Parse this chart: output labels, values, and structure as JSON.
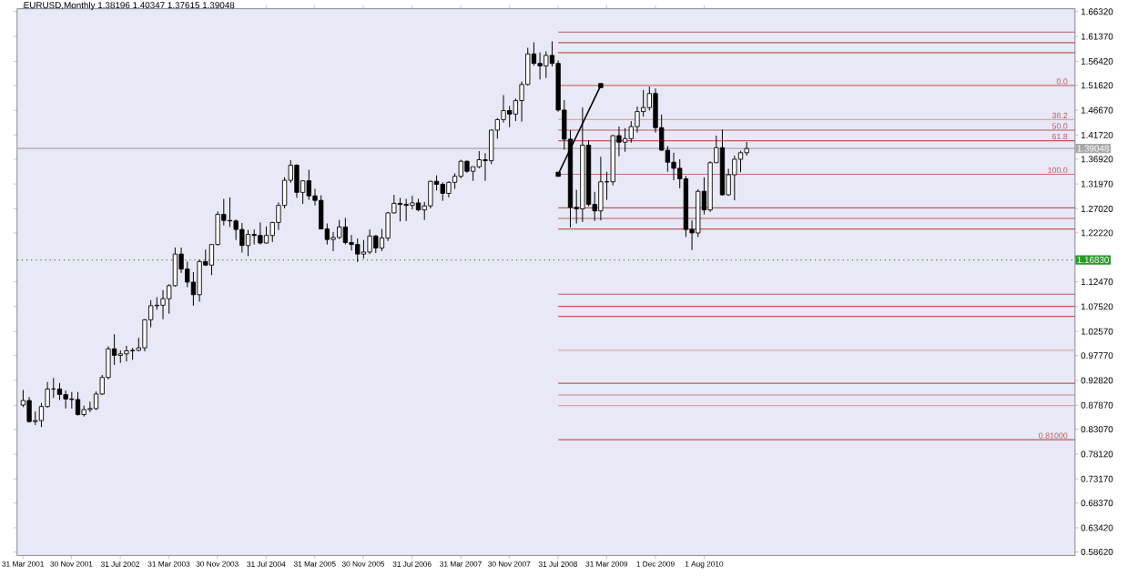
{
  "chart_data": {
    "type": "candlestick",
    "title": "EURUSD,Monthly  1.38196 1.40347 1.37615 1.39048",
    "x": [
      "2001-04",
      "2001-05",
      "2001-06",
      "2001-07",
      "2001-08",
      "2001-09",
      "2001-10",
      "2001-11",
      "2001-12",
      "2002-01",
      "2002-02",
      "2002-03",
      "2002-04",
      "2002-05",
      "2002-06",
      "2002-07",
      "2002-08",
      "2002-09",
      "2002-10",
      "2002-11",
      "2002-12",
      "2003-01",
      "2003-02",
      "2003-03",
      "2003-04",
      "2003-05",
      "2003-06",
      "2003-07",
      "2003-08",
      "2003-09",
      "2003-10",
      "2003-11",
      "2003-12",
      "2004-01",
      "2004-02",
      "2004-03",
      "2004-04",
      "2004-05",
      "2004-06",
      "2004-07",
      "2004-08",
      "2004-09",
      "2004-10",
      "2004-11",
      "2004-12",
      "2005-01",
      "2005-02",
      "2005-03",
      "2005-04",
      "2005-05",
      "2005-06",
      "2005-07",
      "2005-08",
      "2005-09",
      "2005-10",
      "2005-11",
      "2005-12",
      "2006-01",
      "2006-02",
      "2006-03",
      "2006-04",
      "2006-05",
      "2006-06",
      "2006-07",
      "2006-08",
      "2006-09",
      "2006-10",
      "2006-11",
      "2006-12",
      "2007-01",
      "2007-02",
      "2007-03",
      "2007-04",
      "2007-05",
      "2007-06",
      "2007-07",
      "2007-08",
      "2007-09",
      "2007-10",
      "2007-11",
      "2007-12",
      "2008-01",
      "2008-02",
      "2008-03",
      "2008-04",
      "2008-05",
      "2008-06",
      "2008-07",
      "2008-08",
      "2008-09",
      "2008-10",
      "2008-11",
      "2008-12",
      "2009-01",
      "2009-02",
      "2009-03",
      "2009-04",
      "2009-05",
      "2009-06",
      "2009-07",
      "2009-08",
      "2009-09",
      "2009-10",
      "2009-11",
      "2009-12",
      "2010-01",
      "2010-02",
      "2010-03",
      "2010-04",
      "2010-05",
      "2010-06",
      "2010-07",
      "2010-08",
      "2010-09",
      "2010-10",
      "2010-11",
      "2010-12",
      "2011-01",
      "2011-02",
      "2011-03"
    ],
    "ohlc": [
      [
        0.879,
        0.909,
        0.875,
        0.888
      ],
      [
        0.888,
        0.895,
        0.844,
        0.846
      ],
      [
        0.846,
        0.866,
        0.839,
        0.848
      ],
      [
        0.848,
        0.883,
        0.835,
        0.876
      ],
      [
        0.876,
        0.925,
        0.874,
        0.911
      ],
      [
        0.911,
        0.933,
        0.893,
        0.911
      ],
      [
        0.911,
        0.923,
        0.889,
        0.9
      ],
      [
        0.9,
        0.908,
        0.872,
        0.891
      ],
      [
        0.891,
        0.905,
        0.872,
        0.89
      ],
      [
        0.89,
        0.905,
        0.858,
        0.86
      ],
      [
        0.86,
        0.878,
        0.856,
        0.87
      ],
      [
        0.87,
        0.886,
        0.865,
        0.872
      ],
      [
        0.872,
        0.906,
        0.869,
        0.901
      ],
      [
        0.901,
        0.939,
        0.899,
        0.934
      ],
      [
        0.934,
        0.996,
        0.93,
        0.991
      ],
      [
        0.991,
        1.02,
        0.959,
        0.978
      ],
      [
        0.978,
        0.988,
        0.963,
        0.981
      ],
      [
        0.981,
        0.997,
        0.966,
        0.987
      ],
      [
        0.987,
        0.993,
        0.969,
        0.988
      ],
      [
        0.988,
        1.013,
        0.986,
        0.993
      ],
      [
        0.993,
        1.05,
        0.986,
        1.049
      ],
      [
        1.049,
        1.088,
        1.034,
        1.077
      ],
      [
        1.077,
        1.094,
        1.069,
        1.078
      ],
      [
        1.078,
        1.108,
        1.05,
        1.091
      ],
      [
        1.091,
        1.12,
        1.061,
        1.117
      ],
      [
        1.117,
        1.193,
        1.115,
        1.18
      ],
      [
        1.18,
        1.193,
        1.142,
        1.15
      ],
      [
        1.15,
        1.165,
        1.114,
        1.124
      ],
      [
        1.124,
        1.144,
        1.077,
        1.099
      ],
      [
        1.099,
        1.169,
        1.085,
        1.165
      ],
      [
        1.165,
        1.189,
        1.156,
        1.158
      ],
      [
        1.158,
        1.2,
        1.138,
        1.199
      ],
      [
        1.199,
        1.265,
        1.197,
        1.259
      ],
      [
        1.259,
        1.29,
        1.237,
        1.247
      ],
      [
        1.247,
        1.293,
        1.234,
        1.246
      ],
      [
        1.246,
        1.249,
        1.208,
        1.229
      ],
      [
        1.229,
        1.242,
        1.183,
        1.197
      ],
      [
        1.197,
        1.228,
        1.176,
        1.219
      ],
      [
        1.219,
        1.229,
        1.199,
        1.217
      ],
      [
        1.217,
        1.243,
        1.199,
        1.202
      ],
      [
        1.202,
        1.235,
        1.201,
        1.217
      ],
      [
        1.217,
        1.244,
        1.204,
        1.243
      ],
      [
        1.243,
        1.283,
        1.228,
        1.277
      ],
      [
        1.277,
        1.333,
        1.271,
        1.327
      ],
      [
        1.327,
        1.367,
        1.322,
        1.357
      ],
      [
        1.357,
        1.359,
        1.292,
        1.303
      ],
      [
        1.303,
        1.327,
        1.28,
        1.326
      ],
      [
        1.326,
        1.348,
        1.288,
        1.296
      ],
      [
        1.296,
        1.31,
        1.277,
        1.287
      ],
      [
        1.287,
        1.297,
        1.23,
        1.23
      ],
      [
        1.23,
        1.241,
        1.199,
        1.209
      ],
      [
        1.209,
        1.224,
        1.186,
        1.213
      ],
      [
        1.213,
        1.248,
        1.21,
        1.234
      ],
      [
        1.234,
        1.252,
        1.199,
        1.203
      ],
      [
        1.203,
        1.218,
        1.187,
        1.199
      ],
      [
        1.199,
        1.211,
        1.164,
        1.18
      ],
      [
        1.18,
        1.208,
        1.171,
        1.184
      ],
      [
        1.184,
        1.229,
        1.18,
        1.216
      ],
      [
        1.216,
        1.218,
        1.182,
        1.192
      ],
      [
        1.192,
        1.23,
        1.186,
        1.212
      ],
      [
        1.212,
        1.264,
        1.206,
        1.262
      ],
      [
        1.262,
        1.298,
        1.261,
        1.281
      ],
      [
        1.281,
        1.292,
        1.245,
        1.279
      ],
      [
        1.279,
        1.29,
        1.246,
        1.277
      ],
      [
        1.277,
        1.296,
        1.269,
        1.282
      ],
      [
        1.282,
        1.29,
        1.265,
        1.268
      ],
      [
        1.268,
        1.284,
        1.248,
        1.276
      ],
      [
        1.276,
        1.326,
        1.271,
        1.325
      ],
      [
        1.325,
        1.337,
        1.307,
        1.319
      ],
      [
        1.319,
        1.323,
        1.286,
        1.301
      ],
      [
        1.301,
        1.325,
        1.293,
        1.323
      ],
      [
        1.323,
        1.341,
        1.31,
        1.335
      ],
      [
        1.335,
        1.368,
        1.331,
        1.365
      ],
      [
        1.365,
        1.366,
        1.342,
        1.345
      ],
      [
        1.345,
        1.354,
        1.326,
        1.354
      ],
      [
        1.354,
        1.385,
        1.351,
        1.368
      ],
      [
        1.368,
        1.381,
        1.326,
        1.366
      ],
      [
        1.366,
        1.428,
        1.359,
        1.427
      ],
      [
        1.427,
        1.451,
        1.41,
        1.448
      ],
      [
        1.448,
        1.497,
        1.442,
        1.466
      ],
      [
        1.466,
        1.475,
        1.433,
        1.459
      ],
      [
        1.459,
        1.49,
        1.445,
        1.486
      ],
      [
        1.486,
        1.524,
        1.444,
        1.518
      ],
      [
        1.518,
        1.591,
        1.516,
        1.579
      ],
      [
        1.579,
        1.602,
        1.556,
        1.56
      ],
      [
        1.56,
        1.582,
        1.528,
        1.555
      ],
      [
        1.555,
        1.584,
        1.531,
        1.576
      ],
      [
        1.576,
        1.604,
        1.554,
        1.56
      ],
      [
        1.56,
        1.566,
        1.464,
        1.467
      ],
      [
        1.467,
        1.487,
        1.388,
        1.409
      ],
      [
        1.409,
        1.427,
        1.233,
        1.273
      ],
      [
        1.273,
        1.308,
        1.241,
        1.27
      ],
      [
        1.27,
        1.472,
        1.244,
        1.397
      ],
      [
        1.397,
        1.406,
        1.275,
        1.279
      ],
      [
        1.279,
        1.304,
        1.246,
        1.266
      ],
      [
        1.266,
        1.374,
        1.247,
        1.324
      ],
      [
        1.324,
        1.344,
        1.288,
        1.324
      ],
      [
        1.324,
        1.417,
        1.317,
        1.416
      ],
      [
        1.416,
        1.434,
        1.375,
        1.403
      ],
      [
        1.403,
        1.431,
        1.384,
        1.41
      ],
      [
        1.41,
        1.445,
        1.402,
        1.434
      ],
      [
        1.434,
        1.474,
        1.422,
        1.464
      ],
      [
        1.464,
        1.507,
        1.454,
        1.472
      ],
      [
        1.472,
        1.514,
        1.466,
        1.5
      ],
      [
        1.5,
        1.51,
        1.422,
        1.432
      ],
      [
        1.432,
        1.458,
        1.386,
        1.387
      ],
      [
        1.387,
        1.395,
        1.344,
        1.363
      ],
      [
        1.363,
        1.382,
        1.327,
        1.351
      ],
      [
        1.351,
        1.369,
        1.311,
        1.33
      ],
      [
        1.33,
        1.336,
        1.214,
        1.229
      ],
      [
        1.229,
        1.247,
        1.188,
        1.222
      ],
      [
        1.222,
        1.309,
        1.214,
        1.305
      ],
      [
        1.305,
        1.333,
        1.259,
        1.268
      ],
      [
        1.268,
        1.365,
        1.264,
        1.362
      ],
      [
        1.362,
        1.416,
        1.362,
        1.392
      ],
      [
        1.392,
        1.428,
        1.297,
        1.298
      ],
      [
        1.298,
        1.35,
        1.296,
        1.338
      ],
      [
        1.338,
        1.376,
        1.287,
        1.369
      ],
      [
        1.369,
        1.386,
        1.343,
        1.382
      ],
      [
        1.38196,
        1.40347,
        1.37615,
        1.39048
      ]
    ],
    "series": [
      {
        "type": "line",
        "x": [
          "2008-08",
          "2009-03"
        ],
        "values": [
          1.339,
          1.516
        ],
        "color": "#000000",
        "marker": "square"
      }
    ],
    "xlim": [
      "2001-03",
      "2015-09"
    ],
    "xticks": [
      {
        "value": "2001-03-31",
        "label": "31 Mar 2001"
      },
      {
        "value": "2001-11-30",
        "label": "30 Nov 2001"
      },
      {
        "value": "2002-07-31",
        "label": "31 Jul 2002"
      },
      {
        "value": "2003-03-31",
        "label": "31 Mar 2003"
      },
      {
        "value": "2003-11-30",
        "label": "30 Nov 2003"
      },
      {
        "value": "2004-07-31",
        "label": "31 Jul 2004"
      },
      {
        "value": "2005-03-31",
        "label": "31 Mar 2005"
      },
      {
        "value": "2005-11-30",
        "label": "30 Nov 2005"
      },
      {
        "value": "2006-07-31",
        "label": "31 Jul 2006"
      },
      {
        "value": "2007-03-31",
        "label": "31 Mar 2007"
      },
      {
        "value": "2007-11-30",
        "label": "30 Nov 2007"
      },
      {
        "value": "2008-07-31",
        "label": "31 Jul 2008"
      },
      {
        "value": "2009-03-31",
        "label": "31 Mar 2009"
      },
      {
        "value": "2009-12-01",
        "label": "1 Dec 2009"
      },
      {
        "value": "2010-08-01",
        "label": "1 Aug 2010"
      }
    ],
    "annotations": [
      {
        "text": "0.0",
        "y": 1.516
      },
      {
        "text": "38.2",
        "y": 1.448
      },
      {
        "text": "50.0",
        "y": 1.427
      },
      {
        "text": "61.8",
        "y": 1.406
      },
      {
        "text": "100.0",
        "y": 1.339
      }
    ],
    "ylim": [
      0.579,
      1.669
    ],
    "yticks": [
      {
        "value": 1.6632,
        "label": "1.66320"
      },
      {
        "value": 1.6137,
        "label": "1.61370"
      },
      {
        "value": 1.5642,
        "label": "1.56420"
      },
      {
        "value": 1.5162,
        "label": "1.51620"
      },
      {
        "value": 1.4667,
        "label": "1.46670"
      },
      {
        "value": 1.4172,
        "label": "1.41720"
      },
      {
        "value": 1.3692,
        "label": "1.36920"
      },
      {
        "value": 1.3197,
        "label": "1.31970"
      },
      {
        "value": 1.2702,
        "label": "1.27020"
      },
      {
        "value": 1.2222,
        "label": "1.22220"
      },
      {
        "value": 1.1247,
        "label": "1.12470"
      },
      {
        "value": 1.0752,
        "label": "1.07520"
      },
      {
        "value": 1.0257,
        "label": "1.02570"
      },
      {
        "value": 0.9777,
        "label": "0.97770"
      },
      {
        "value": 0.9282,
        "label": "0.92820"
      },
      {
        "value": 0.8787,
        "label": "0.87870"
      },
      {
        "value": 0.8307,
        "label": "0.83070"
      },
      {
        "value": 0.7812,
        "label": "0.78120"
      },
      {
        "value": 0.7317,
        "label": "0.73170"
      },
      {
        "value": 0.6837,
        "label": "0.68370"
      },
      {
        "value": 0.6342,
        "label": "0.63420"
      },
      {
        "value": 0.5862,
        "label": "0.58620"
      }
    ],
    "ref_lines": [
      {
        "axis": "y",
        "value": 1.6225,
        "color": "#b85c5c"
      },
      {
        "axis": "y",
        "value": 1.6015,
        "color": "#b85c5c"
      },
      {
        "axis": "y",
        "value": 1.5815,
        "color": "#b85c5c"
      },
      {
        "axis": "y",
        "value": 1.516,
        "color": "#c87070"
      },
      {
        "axis": "y",
        "value": 1.448,
        "color": "#d8a8a8"
      },
      {
        "axis": "y",
        "value": 1.427,
        "color": "#b85c5c"
      },
      {
        "axis": "y",
        "value": 1.406,
        "color": "#b85c5c"
      },
      {
        "axis": "y",
        "value": 1.339,
        "color": "#c87070"
      },
      {
        "axis": "y",
        "value": 1.272,
        "color": "#b85c5c"
      },
      {
        "axis": "y",
        "value": 1.251,
        "color": "#b85c5c"
      },
      {
        "axis": "y",
        "value": 1.23,
        "color": "#b85c5c"
      },
      {
        "axis": "y",
        "value": 1.1,
        "color": "#b85c5c"
      },
      {
        "axis": "y",
        "value": 1.0758,
        "color": "#b85c5c"
      },
      {
        "axis": "y",
        "value": 1.0558,
        "color": "#b85c5c"
      },
      {
        "axis": "y",
        "value": 0.988,
        "color": "#d8a8a8"
      },
      {
        "axis": "y",
        "value": 0.9223,
        "color": "#b85c5c"
      },
      {
        "axis": "y",
        "value": 0.899,
        "color": "#c88888"
      },
      {
        "axis": "y",
        "value": 0.878,
        "color": "#d8a8a8"
      },
      {
        "axis": "y",
        "value": 0.81,
        "label": "0.81000",
        "color": "#b85c5c"
      },
      {
        "axis": "y",
        "value": 1.39048,
        "label": "1.39048",
        "color": "#a8a8a8",
        "line_style": "solid"
      },
      {
        "axis": "y",
        "value": 1.1683,
        "label": "1.16830",
        "color": "#2a9a2a",
        "line_style": "dotted"
      }
    ]
  }
}
